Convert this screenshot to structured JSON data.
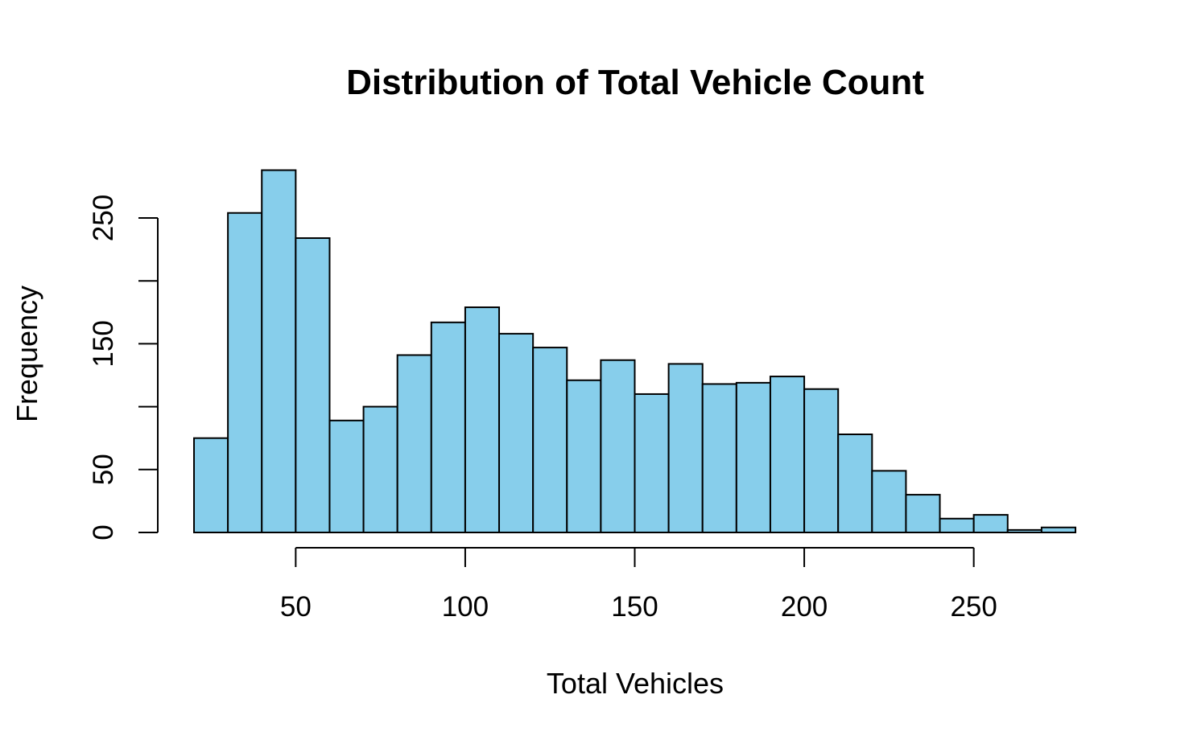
{
  "chart_data": {
    "type": "bar",
    "title": "Distribution of Total Vehicle Count",
    "xlabel": "Total Vehicles",
    "ylabel": "Frequency",
    "bin_edges": [
      20,
      30,
      40,
      50,
      60,
      70,
      80,
      90,
      100,
      110,
      120,
      130,
      140,
      150,
      160,
      170,
      180,
      190,
      200,
      210,
      220,
      230,
      240,
      250,
      260,
      270,
      280
    ],
    "values": [
      75,
      254,
      288,
      234,
      89,
      100,
      141,
      167,
      179,
      158,
      147,
      121,
      137,
      110,
      134,
      118,
      119,
      124,
      114,
      78,
      49,
      30,
      11,
      14,
      2,
      4
    ],
    "x_ticks": [
      50,
      100,
      150,
      200,
      250
    ],
    "y_ticks": [
      0,
      50,
      100,
      150,
      200,
      250
    ],
    "y_tick_labels": [
      "0",
      "50",
      "",
      "150",
      "",
      "250"
    ],
    "xlim": [
      20,
      280
    ],
    "ylim": [
      0,
      288
    ],
    "bar_color": "#87CEEB",
    "grid": false,
    "legend": "none"
  }
}
